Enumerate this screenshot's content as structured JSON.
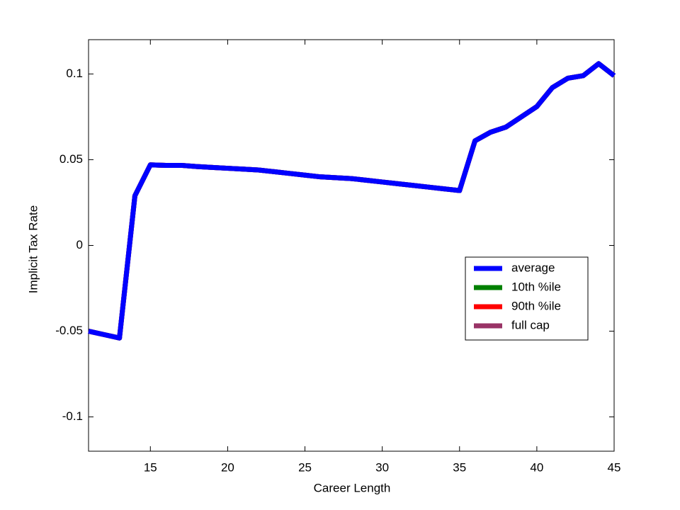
{
  "chart_data": {
    "type": "line",
    "xlabel": "Career Length",
    "ylabel": "Implicit Tax Rate",
    "x": [
      11,
      12,
      13,
      14,
      15,
      16,
      17,
      18,
      19,
      20,
      21,
      22,
      23,
      24,
      25,
      26,
      27,
      28,
      29,
      30,
      31,
      32,
      33,
      34,
      35,
      36,
      37,
      38,
      39,
      40,
      41,
      42,
      43,
      44,
      45
    ],
    "series": [
      {
        "name": "10th %ile",
        "color": "#008000",
        "values": [
          -0.05,
          -0.052,
          -0.054,
          0.029,
          0.047,
          0.0467,
          0.0467,
          0.046,
          0.0455,
          0.045,
          0.0445,
          0.044,
          0.043,
          0.042,
          0.041,
          0.04,
          0.0395,
          0.039,
          0.038,
          0.037,
          0.036,
          0.035,
          0.034,
          0.033,
          0.032,
          0.061,
          0.066,
          0.069,
          0.075,
          0.081,
          0.092,
          0.0975,
          0.099,
          0.106,
          0.099
        ]
      },
      {
        "name": "90th %ile",
        "color": "#ff0000",
        "values": [
          -0.05,
          -0.052,
          -0.054,
          0.029,
          0.047,
          0.0467,
          0.0467,
          0.046,
          0.0455,
          0.045,
          0.0445,
          0.044,
          0.043,
          0.042,
          0.041,
          0.04,
          0.0395,
          0.039,
          0.038,
          0.037,
          0.036,
          0.035,
          0.034,
          0.033,
          0.032,
          0.061,
          0.066,
          0.069,
          0.075,
          0.081,
          0.092,
          0.0975,
          0.099,
          0.106,
          0.099
        ]
      },
      {
        "name": "full cap",
        "color": "#993366",
        "values": [
          -0.05,
          -0.052,
          -0.054,
          0.029,
          0.047,
          0.0467,
          0.0467,
          0.046,
          0.0455,
          0.045,
          0.0445,
          0.044,
          0.043,
          0.042,
          0.041,
          0.04,
          0.0395,
          0.039,
          0.038,
          0.037,
          0.036,
          0.035,
          0.034,
          0.033,
          0.032,
          0.061,
          0.066,
          0.069,
          0.075,
          0.081,
          0.092,
          0.0975,
          0.099,
          0.106,
          0.099
        ]
      },
      {
        "name": "average",
        "color": "#0000ff",
        "values": [
          -0.05,
          -0.052,
          -0.054,
          0.029,
          0.047,
          0.0467,
          0.0467,
          0.046,
          0.0455,
          0.045,
          0.0445,
          0.044,
          0.043,
          0.042,
          0.041,
          0.04,
          0.0395,
          0.039,
          0.038,
          0.037,
          0.036,
          0.035,
          0.034,
          0.033,
          0.032,
          0.061,
          0.066,
          0.069,
          0.075,
          0.081,
          0.092,
          0.0975,
          0.099,
          0.106,
          0.099
        ]
      }
    ],
    "legend_order": [
      "average",
      "10th %ile",
      "90th %ile",
      "full cap"
    ],
    "xlim": [
      11,
      45
    ],
    "xticks": [
      15,
      20,
      25,
      30,
      35,
      40,
      45
    ],
    "ylim": [
      -0.12,
      0.12
    ],
    "yticks": [
      -0.1,
      -0.05,
      0,
      0.05,
      0.1
    ],
    "grid": false,
    "legend": "right"
  }
}
